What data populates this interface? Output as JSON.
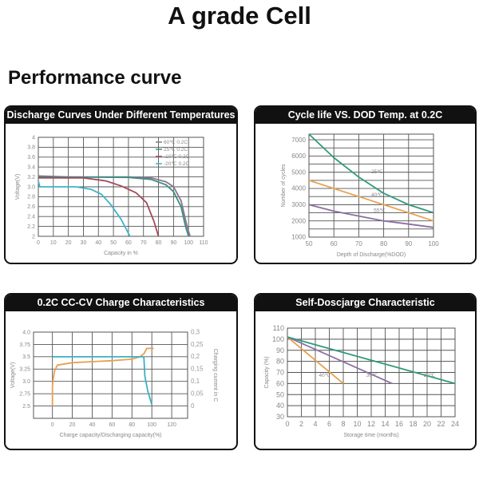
{
  "title": "A grade Cell",
  "section": "Performance curve",
  "chart_data": [
    {
      "type": "line",
      "title": "Discharge Curves Under Different Temperatures",
      "xlabel": "Capacity in %",
      "ylabel": "Voltage(V)",
      "xlim": [
        0,
        110
      ],
      "ylim": [
        2,
        4
      ],
      "xticks": [
        0,
        10,
        20,
        30,
        40,
        50,
        60,
        70,
        80,
        90,
        100,
        110
      ],
      "yticks": [
        2,
        2.2,
        2.4,
        2.6,
        2.8,
        3.0,
        3.2,
        3.4,
        3.6,
        3.8,
        4
      ],
      "ytick_labels": [
        "2",
        "2.2",
        "2.4",
        "2.6",
        "2.8",
        "3.0",
        "3.2",
        "3.4",
        "3.6",
        "3.8",
        "4"
      ],
      "grid": true,
      "legend": "top-right",
      "series": [
        {
          "name": "60℃  0.2C",
          "color": "#8d7390",
          "points": [
            [
              0,
              3.22
            ],
            [
              20,
              3.2
            ],
            [
              60,
              3.2
            ],
            [
              75,
              3.18
            ],
            [
              85,
              3.1
            ],
            [
              90,
              3.0
            ],
            [
              95,
              2.72
            ],
            [
              99,
              2.2
            ],
            [
              101,
              2.0
            ]
          ]
        },
        {
          "name": "25℃  0.2C",
          "color": "#3b8f82",
          "points": [
            [
              0,
              3.2
            ],
            [
              60,
              3.19
            ],
            [
              75,
              3.15
            ],
            [
              85,
              3.04
            ],
            [
              90,
              2.9
            ],
            [
              95,
              2.6
            ],
            [
              98,
              2.2
            ],
            [
              100,
              2.0
            ]
          ]
        },
        {
          "name": "-10℃  0.2C",
          "color": "#a44a5c",
          "points": [
            [
              0,
              3.18
            ],
            [
              30,
              3.18
            ],
            [
              45,
              3.12
            ],
            [
              55,
              3.02
            ],
            [
              65,
              2.88
            ],
            [
              72,
              2.68
            ],
            [
              77,
              2.3
            ],
            [
              80,
              2.0
            ]
          ]
        },
        {
          "name": "-20℃  0.2C",
          "color": "#3db4c8",
          "points": [
            [
              0,
              3.12
            ],
            [
              1,
              3.0
            ],
            [
              25,
              3.0
            ],
            [
              35,
              2.95
            ],
            [
              42,
              2.85
            ],
            [
              48,
              2.65
            ],
            [
              55,
              2.35
            ],
            [
              61,
              2.0
            ]
          ]
        }
      ]
    },
    {
      "type": "line",
      "title": "Cycle life VS. DOD Temp. at 0.2C",
      "xlabel": "Depth of Discharge(%DOD)",
      "ylabel": "Number of cycles",
      "xlim": [
        50,
        100
      ],
      "ylim": [
        1000,
        7350
      ],
      "xticks": [
        50,
        60,
        70,
        80,
        90,
        100
      ],
      "yticks": [
        1000,
        2000,
        3000,
        4000,
        5000,
        6000,
        7000
      ],
      "ytick_labels": [
        "1000",
        "2000",
        "3000",
        "4000",
        "5000",
        "6000",
        "7000"
      ],
      "ygrid_step": 500,
      "grid": true,
      "series": [
        {
          "name": "25℃",
          "color": "#2f9a7c",
          "label_at": [
            75,
            4950
          ],
          "points": [
            [
              50,
              7350
            ],
            [
              60,
              5900
            ],
            [
              70,
              4700
            ],
            [
              80,
              3700
            ],
            [
              90,
              3000
            ],
            [
              100,
              2500
            ]
          ]
        },
        {
          "name": "40℃",
          "color": "#e8a356",
          "label_at": [
            75,
            3500
          ],
          "points": [
            [
              50,
              4500
            ],
            [
              60,
              4000
            ],
            [
              70,
              3500
            ],
            [
              80,
              3000
            ],
            [
              90,
              2500
            ],
            [
              100,
              2000
            ]
          ]
        },
        {
          "name": "55℃",
          "color": "#8c6ea2",
          "label_at": [
            76,
            2550
          ],
          "points": [
            [
              50,
              3000
            ],
            [
              60,
              2600
            ],
            [
              70,
              2300
            ],
            [
              80,
              2000
            ],
            [
              90,
              1800
            ],
            [
              100,
              1600
            ]
          ]
        }
      ]
    },
    {
      "type": "line",
      "title": "0.2C CC-CV Charge Characteristics",
      "xlabel": "Charge capacity/Discharging capacity(%)",
      "ylabel": "Voltage(V)",
      "y2label": "Charging current in C",
      "xlim": [
        -19,
        136
      ],
      "ylim": [
        2.25,
        4.0
      ],
      "xticks": [
        0,
        20,
        40,
        60,
        80,
        100,
        120
      ],
      "yticks": [
        2.5,
        2.75,
        3.0,
        3.25,
        3.5,
        3.75,
        4.0
      ],
      "ytick_labels": [
        "2.5",
        "2.75",
        "3.0",
        "3.25",
        "3.5",
        "3.75",
        "4.0"
      ],
      "y2lim": [
        0,
        0.3
      ],
      "y2ticks": [
        0,
        0.05,
        0.1,
        0.15,
        0.2,
        0.25,
        0.3
      ],
      "y2tick_labels": [
        "0",
        "0,05",
        "0,1",
        "0,15",
        "0,2",
        "0,25",
        "0,3"
      ],
      "grid": true,
      "series": [
        {
          "name": "Voltage",
          "color": "#e8a050",
          "axis": "left",
          "points": [
            [
              0,
              2.5
            ],
            [
              0,
              2.9
            ],
            [
              0.5,
              3.0
            ],
            [
              2,
              3.2
            ],
            [
              5,
              3.33
            ],
            [
              20,
              3.38
            ],
            [
              40,
              3.4
            ],
            [
              60,
              3.42
            ],
            [
              80,
              3.45
            ],
            [
              88,
              3.5
            ],
            [
              92,
              3.56
            ],
            [
              95,
              3.67
            ],
            [
              102,
              3.67
            ]
          ]
        },
        {
          "name": "Current",
          "color": "#3bb0c4",
          "axis": "right",
          "points": [
            [
              0,
              0.2
            ],
            [
              92,
              0.2
            ],
            [
              93,
              0.12
            ],
            [
              96,
              0.06
            ],
            [
              100,
              0.005
            ]
          ]
        }
      ]
    },
    {
      "type": "line",
      "title": "Self-Doscjarge Characteristic",
      "xlabel": "Storage time (months)",
      "ylabel": "Capacity (%)",
      "xlim": [
        0,
        24
      ],
      "ylim": [
        30,
        110
      ],
      "xticks": [
        0,
        2,
        4,
        6,
        8,
        10,
        12,
        14,
        16,
        18,
        20,
        22,
        24
      ],
      "yticks": [
        30,
        40,
        50,
        60,
        70,
        80,
        90,
        100,
        110
      ],
      "ytick_labels": [
        "30",
        "40",
        "50",
        "60",
        "70",
        "80",
        "90",
        "100",
        "110"
      ],
      "grid": true,
      "series": [
        {
          "name": "40℃",
          "color": "#e8a050",
          "label_at": [
            4.5,
            66
          ],
          "points": [
            [
              0,
              102
            ],
            [
              8,
              60
            ]
          ]
        },
        {
          "name": "30℃",
          "color": "#8c6ea2",
          "label_at": [
            11.3,
            66
          ],
          "points": [
            [
              0,
              102
            ],
            [
              15,
              60
            ]
          ]
        },
        {
          "name": "20℃",
          "color": "#2f9a7c",
          "label_at": [
            19.5,
            66
          ],
          "points": [
            [
              0,
              102
            ],
            [
              24,
              60
            ]
          ]
        }
      ]
    }
  ]
}
